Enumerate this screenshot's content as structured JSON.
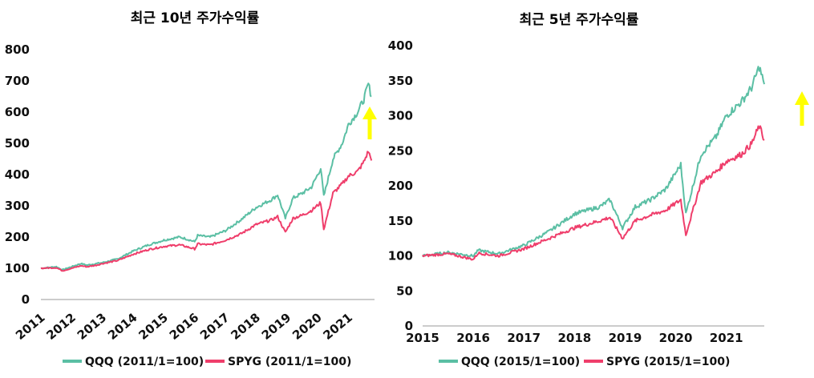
{
  "colors": {
    "qqq": "#5bbfa4",
    "spyg": "#ef3e6b",
    "arrow": "#ffff00",
    "axis": "#999999"
  },
  "chart_data": [
    {
      "type": "line",
      "title": "최근 10년 주가수익률",
      "x_tick_labels": [
        "2011",
        "2012",
        "2013",
        "2014",
        "2015",
        "2016",
        "2017",
        "2018",
        "2019",
        "2020",
        "2021"
      ],
      "y_tick_labels": [
        "0",
        "100",
        "200",
        "300",
        "400",
        "500",
        "600",
        "700",
        "800"
      ],
      "ylim": [
        0,
        800
      ],
      "xlim": [
        2011,
        2021.85
      ],
      "grid": false,
      "legend_position": "bottom",
      "annotation": "yellow-up-arrow",
      "series": [
        {
          "name": "QQQ (2011/1=100)",
          "color": "#5bbfa4",
          "x": [
            2011.0,
            2011.5,
            2011.7,
            2012.0,
            2012.3,
            2012.5,
            2012.8,
            2013.0,
            2013.5,
            2014.0,
            2014.5,
            2015.0,
            2015.5,
            2015.7,
            2016.0,
            2016.1,
            2016.5,
            2017.0,
            2017.5,
            2018.0,
            2018.5,
            2018.7,
            2018.95,
            2019.2,
            2019.5,
            2019.8,
            2020.1,
            2020.2,
            2020.5,
            2020.8,
            2021.0,
            2021.3,
            2021.5,
            2021.65,
            2021.75
          ],
          "values": [
            100,
            105,
            95,
            105,
            115,
            110,
            115,
            118,
            130,
            155,
            175,
            190,
            200,
            195,
            185,
            205,
            200,
            220,
            255,
            295,
            320,
            335,
            260,
            325,
            340,
            360,
            420,
            330,
            450,
            500,
            560,
            600,
            640,
            690,
            650
          ]
        },
        {
          "name": "SPYG (2011/1=100)",
          "color": "#ef3e6b",
          "x": [
            2011.0,
            2011.5,
            2011.7,
            2012.0,
            2012.3,
            2012.5,
            2012.8,
            2013.0,
            2013.5,
            2014.0,
            2014.5,
            2015.0,
            2015.5,
            2015.7,
            2016.0,
            2016.1,
            2016.5,
            2017.0,
            2017.5,
            2018.0,
            2018.5,
            2018.7,
            2018.95,
            2019.2,
            2019.5,
            2019.8,
            2020.1,
            2020.2,
            2020.5,
            2020.8,
            2021.0,
            2021.3,
            2021.5,
            2021.65,
            2021.75
          ],
          "values": [
            100,
            102,
            92,
            100,
            108,
            105,
            110,
            115,
            125,
            145,
            160,
            170,
            175,
            170,
            162,
            178,
            175,
            190,
            210,
            240,
            255,
            265,
            215,
            260,
            270,
            285,
            310,
            225,
            340,
            370,
            395,
            410,
            440,
            475,
            445
          ]
        }
      ]
    },
    {
      "type": "line",
      "title": "최근 5년 주가수익률",
      "x_tick_labels": [
        "2015",
        "2016",
        "2017",
        "2018",
        "2019",
        "2020",
        "2021"
      ],
      "y_tick_labels": [
        "0",
        "50",
        "100",
        "150",
        "200",
        "250",
        "300",
        "350",
        "400"
      ],
      "ylim": [
        0,
        400
      ],
      "xlim": [
        2015,
        2021.75
      ],
      "grid": false,
      "legend_position": "bottom",
      "annotation": "yellow-up-arrow",
      "series": [
        {
          "name": "QQQ (2015/1=100)",
          "color": "#5bbfa4",
          "x": [
            2015.0,
            2015.5,
            2015.7,
            2016.0,
            2016.1,
            2016.5,
            2017.0,
            2017.5,
            2018.0,
            2018.5,
            2018.7,
            2018.95,
            2019.2,
            2019.5,
            2019.8,
            2020.1,
            2020.2,
            2020.5,
            2020.8,
            2021.0,
            2021.3,
            2021.5,
            2021.65,
            2021.75
          ],
          "values": [
            100,
            105,
            103,
            100,
            108,
            103,
            115,
            135,
            160,
            170,
            180,
            140,
            170,
            180,
            195,
            230,
            160,
            245,
            270,
            300,
            320,
            340,
            370,
            345
          ]
        },
        {
          "name": "SPYG (2015/1=100)",
          "color": "#ef3e6b",
          "x": [
            2015.0,
            2015.5,
            2015.7,
            2016.0,
            2016.1,
            2016.5,
            2017.0,
            2017.5,
            2018.0,
            2018.5,
            2018.7,
            2018.95,
            2019.2,
            2019.5,
            2019.8,
            2020.1,
            2020.2,
            2020.5,
            2020.8,
            2021.0,
            2021.3,
            2021.5,
            2021.65,
            2021.75
          ],
          "values": [
            100,
            103,
            100,
            95,
            104,
            100,
            110,
            125,
            140,
            150,
            155,
            125,
            150,
            158,
            165,
            180,
            130,
            205,
            220,
            235,
            245,
            260,
            285,
            265
          ]
        }
      ]
    }
  ]
}
